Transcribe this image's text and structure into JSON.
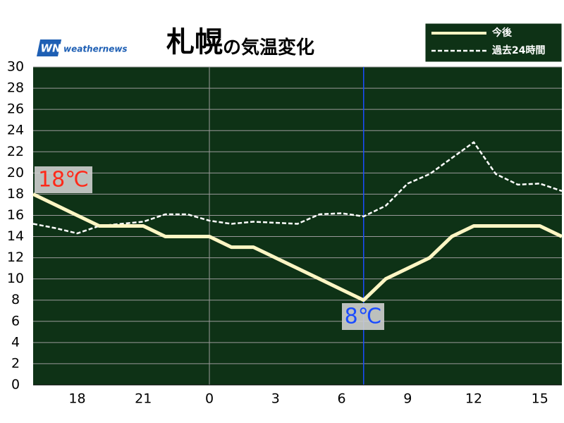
{
  "chart_data": {
    "type": "line",
    "title_parts": [
      "札幌",
      "の気温変化"
    ],
    "logo_mark": "WN",
    "logo": "weathernews",
    "categories": [
      null,
      null,
      "18",
      null,
      null,
      "21",
      null,
      null,
      "0",
      null,
      null,
      "3",
      null,
      null,
      "6",
      null,
      null,
      "9",
      null,
      null,
      "12",
      null,
      null,
      "15",
      null
    ],
    "series": [
      {
        "name": "今後",
        "color": "#fff6c4",
        "style": "solid",
        "values": [
          18,
          17,
          16,
          15,
          15,
          15,
          14,
          14,
          14,
          13,
          13,
          12,
          11,
          10,
          9,
          8,
          10,
          11,
          12,
          14,
          15,
          15,
          15,
          15,
          14
        ]
      },
      {
        "name": "過去24時間",
        "color": "#ffffff",
        "style": "dashed",
        "values": [
          15.2,
          14.8,
          14.3,
          15,
          15.2,
          15.4,
          16.1,
          16.1,
          15.5,
          15.2,
          15.4,
          15.3,
          15.2,
          16.1,
          16.2,
          15.9,
          16.9,
          19,
          19.9,
          21.4,
          22.9,
          19.9,
          18.9,
          19,
          18.3
        ]
      }
    ],
    "annotations": [
      {
        "text": "18℃",
        "color": "#ff2a1a"
      },
      {
        "text": "8℃",
        "color": "#1a4cff"
      }
    ],
    "ylim": [
      0,
      30
    ],
    "yticks": [
      0,
      2,
      4,
      6,
      8,
      10,
      12,
      14,
      16,
      18,
      20,
      22,
      24,
      26,
      28,
      30
    ],
    "grid": true,
    "background": "#0e3216"
  }
}
